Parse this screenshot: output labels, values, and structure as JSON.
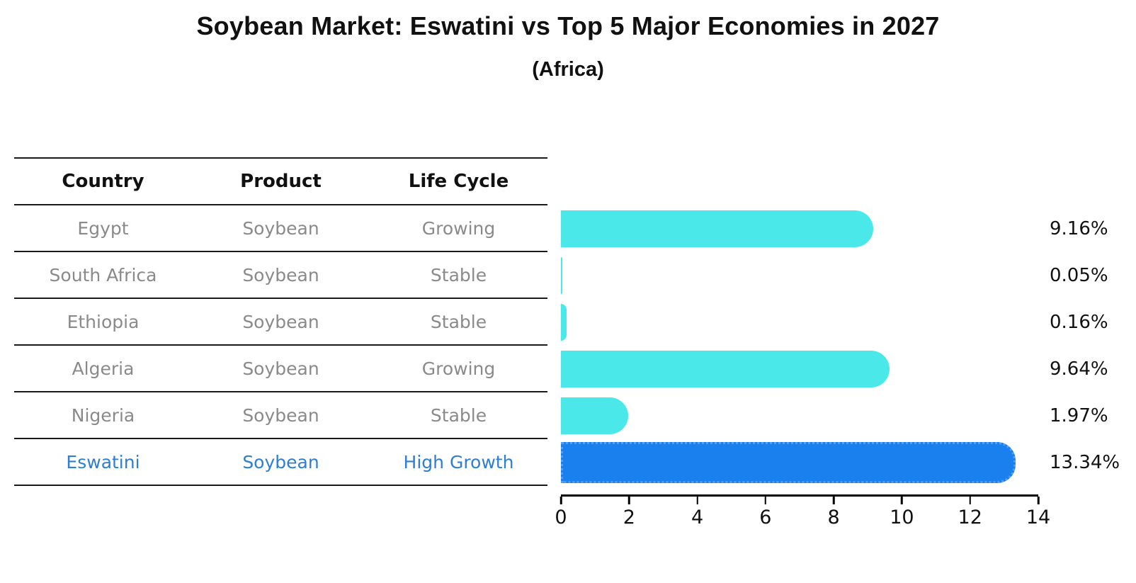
{
  "title": "Soybean Market: Eswatini vs Top 5 Major Economies in 2027",
  "subtitle": "(Africa)",
  "table": {
    "headers": [
      "Country",
      "Product",
      "Life Cycle"
    ]
  },
  "rows": [
    {
      "country": "Egypt",
      "product": "Soybean",
      "life_cycle": "Growing",
      "value": 9.16,
      "value_label": "9.16%",
      "highlight": false
    },
    {
      "country": "South Africa",
      "product": "Soybean",
      "life_cycle": "Stable",
      "value": 0.05,
      "value_label": "0.05%",
      "highlight": false
    },
    {
      "country": "Ethiopia",
      "product": "Soybean",
      "life_cycle": "Stable",
      "value": 0.16,
      "value_label": "0.16%",
      "highlight": false
    },
    {
      "country": "Algeria",
      "product": "Soybean",
      "life_cycle": "Growing",
      "value": 9.64,
      "value_label": "9.64%",
      "highlight": false
    },
    {
      "country": "Nigeria",
      "product": "Soybean",
      "life_cycle": "Stable",
      "value": 1.97,
      "value_label": "1.97%",
      "highlight": false
    },
    {
      "country": "Eswatini",
      "product": "Soybean",
      "life_cycle": "High Growth",
      "value": 13.34,
      "value_label": "13.34%",
      "highlight": true
    }
  ],
  "chart_data": {
    "type": "bar",
    "orientation": "horizontal",
    "title": "Soybean Market: Eswatini vs Top 5 Major Economies in 2027",
    "subtitle": "(Africa)",
    "categories": [
      "Egypt",
      "South Africa",
      "Ethiopia",
      "Algeria",
      "Nigeria",
      "Eswatini"
    ],
    "values": [
      9.16,
      0.05,
      0.16,
      9.64,
      1.97,
      13.34
    ],
    "data_labels": [
      "9.16%",
      "0.05%",
      "0.16%",
      "9.64%",
      "1.97%",
      "13.34%"
    ],
    "xlabel": "",
    "ylabel": "",
    "xlim": [
      0,
      14
    ],
    "xticks": [
      0,
      2,
      4,
      6,
      8,
      10,
      12,
      14
    ],
    "grid": false,
    "legend": false,
    "highlighted_category": "Eswatini"
  },
  "colors": {
    "bar_default": "#4AE8E8",
    "bar_highlight": "#1A80ED",
    "bar_highlight_border": "#5a9df0",
    "text_default": "#8a8a8a",
    "text_highlight": "#2e7ed2",
    "text_heading": "#111111",
    "line": "#1a1a1a"
  }
}
